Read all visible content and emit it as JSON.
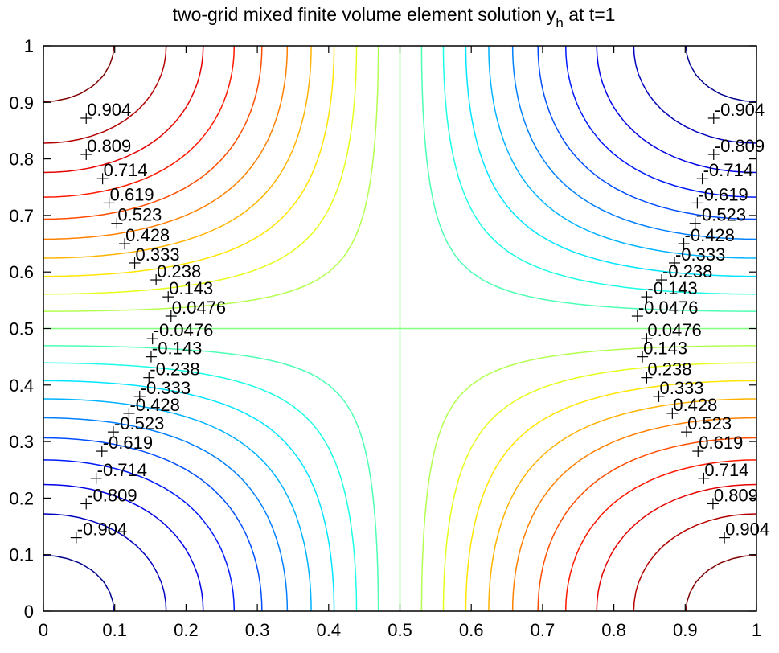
{
  "chart_data": {
    "type": "contour",
    "title": "two-grid mixed finite volume element solution y",
    "title_subscript": "h",
    "title_suffix": " at t=1",
    "xlim": [
      0,
      1
    ],
    "ylim": [
      0,
      1
    ],
    "xticks": [
      "0",
      "0.1",
      "0.2",
      "0.3",
      "0.4",
      "0.5",
      "0.6",
      "0.7",
      "0.8",
      "0.9",
      "1"
    ],
    "yticks": [
      "0",
      "0.1",
      "0.2",
      "0.3",
      "0.4",
      "0.5",
      "0.6",
      "0.7",
      "0.8",
      "0.9",
      "1"
    ],
    "field": "z = -cos(pi*x) * cos(pi*y)",
    "levels": [
      -0.952,
      -0.857,
      -0.762,
      -0.667,
      -0.571,
      -0.476,
      -0.381,
      -0.286,
      -0.19,
      -0.0952,
      0,
      0.0952,
      0.19,
      0.286,
      0.381,
      0.476,
      0.571,
      0.667,
      0.762,
      0.857,
      0.952
    ],
    "colormap": [
      "#00008f",
      "#0000ff",
      "#0080ff",
      "#00ffff",
      "#80ff80",
      "#ffff00",
      "#ff8000",
      "#ff0000",
      "#800000"
    ],
    "labels": [
      {
        "text": "0.904",
        "x": 0.06,
        "y": 0.872
      },
      {
        "text": "0.809",
        "x": 0.06,
        "y": 0.808
      },
      {
        "text": "0.714",
        "x": 0.083,
        "y": 0.765
      },
      {
        "text": "0.619",
        "x": 0.092,
        "y": 0.722
      },
      {
        "text": "0.523",
        "x": 0.103,
        "y": 0.686
      },
      {
        "text": "0.428",
        "x": 0.114,
        "y": 0.65
      },
      {
        "text": "0.333",
        "x": 0.128,
        "y": 0.616
      },
      {
        "text": "0.238",
        "x": 0.158,
        "y": 0.586
      },
      {
        "text": "0.143",
        "x": 0.175,
        "y": 0.556
      },
      {
        "text": "0.0476",
        "x": 0.179,
        "y": 0.522
      },
      {
        "text": "-0.0476",
        "x": 0.153,
        "y": 0.482
      },
      {
        "text": "-0.143",
        "x": 0.151,
        "y": 0.45
      },
      {
        "text": "-0.238",
        "x": 0.148,
        "y": 0.413
      },
      {
        "text": "-0.333",
        "x": 0.135,
        "y": 0.38
      },
      {
        "text": "-0.428",
        "x": 0.12,
        "y": 0.35
      },
      {
        "text": "-0.523",
        "x": 0.098,
        "y": 0.317
      },
      {
        "text": "-0.619",
        "x": 0.082,
        "y": 0.283
      },
      {
        "text": "-0.714",
        "x": 0.074,
        "y": 0.235
      },
      {
        "text": "-0.809",
        "x": 0.06,
        "y": 0.19
      },
      {
        "text": "-0.904",
        "x": 0.046,
        "y": 0.13
      },
      {
        "text": "-0.904",
        "x": 0.94,
        "y": 0.872
      },
      {
        "text": "-0.809",
        "x": 0.94,
        "y": 0.808
      },
      {
        "text": "-0.714",
        "x": 0.924,
        "y": 0.765
      },
      {
        "text": "-0.619",
        "x": 0.917,
        "y": 0.722
      },
      {
        "text": "-0.523",
        "x": 0.914,
        "y": 0.686
      },
      {
        "text": "-0.428",
        "x": 0.898,
        "y": 0.65
      },
      {
        "text": "-0.333",
        "x": 0.885,
        "y": 0.616
      },
      {
        "text": "-0.238",
        "x": 0.867,
        "y": 0.586
      },
      {
        "text": "-0.143",
        "x": 0.846,
        "y": 0.556
      },
      {
        "text": "-0.0476",
        "x": 0.833,
        "y": 0.522
      },
      {
        "text": "0.0476",
        "x": 0.846,
        "y": 0.482
      },
      {
        "text": "0.143",
        "x": 0.84,
        "y": 0.45
      },
      {
        "text": "0.238",
        "x": 0.846,
        "y": 0.413
      },
      {
        "text": "0.333",
        "x": 0.863,
        "y": 0.38
      },
      {
        "text": "0.428",
        "x": 0.882,
        "y": 0.35
      },
      {
        "text": "0.523",
        "x": 0.902,
        "y": 0.317
      },
      {
        "text": "0.619",
        "x": 0.918,
        "y": 0.283
      },
      {
        "text": "0.714",
        "x": 0.926,
        "y": 0.235
      },
      {
        "text": "0.809",
        "x": 0.939,
        "y": 0.19
      },
      {
        "text": "0.904",
        "x": 0.955,
        "y": 0.13
      }
    ]
  }
}
